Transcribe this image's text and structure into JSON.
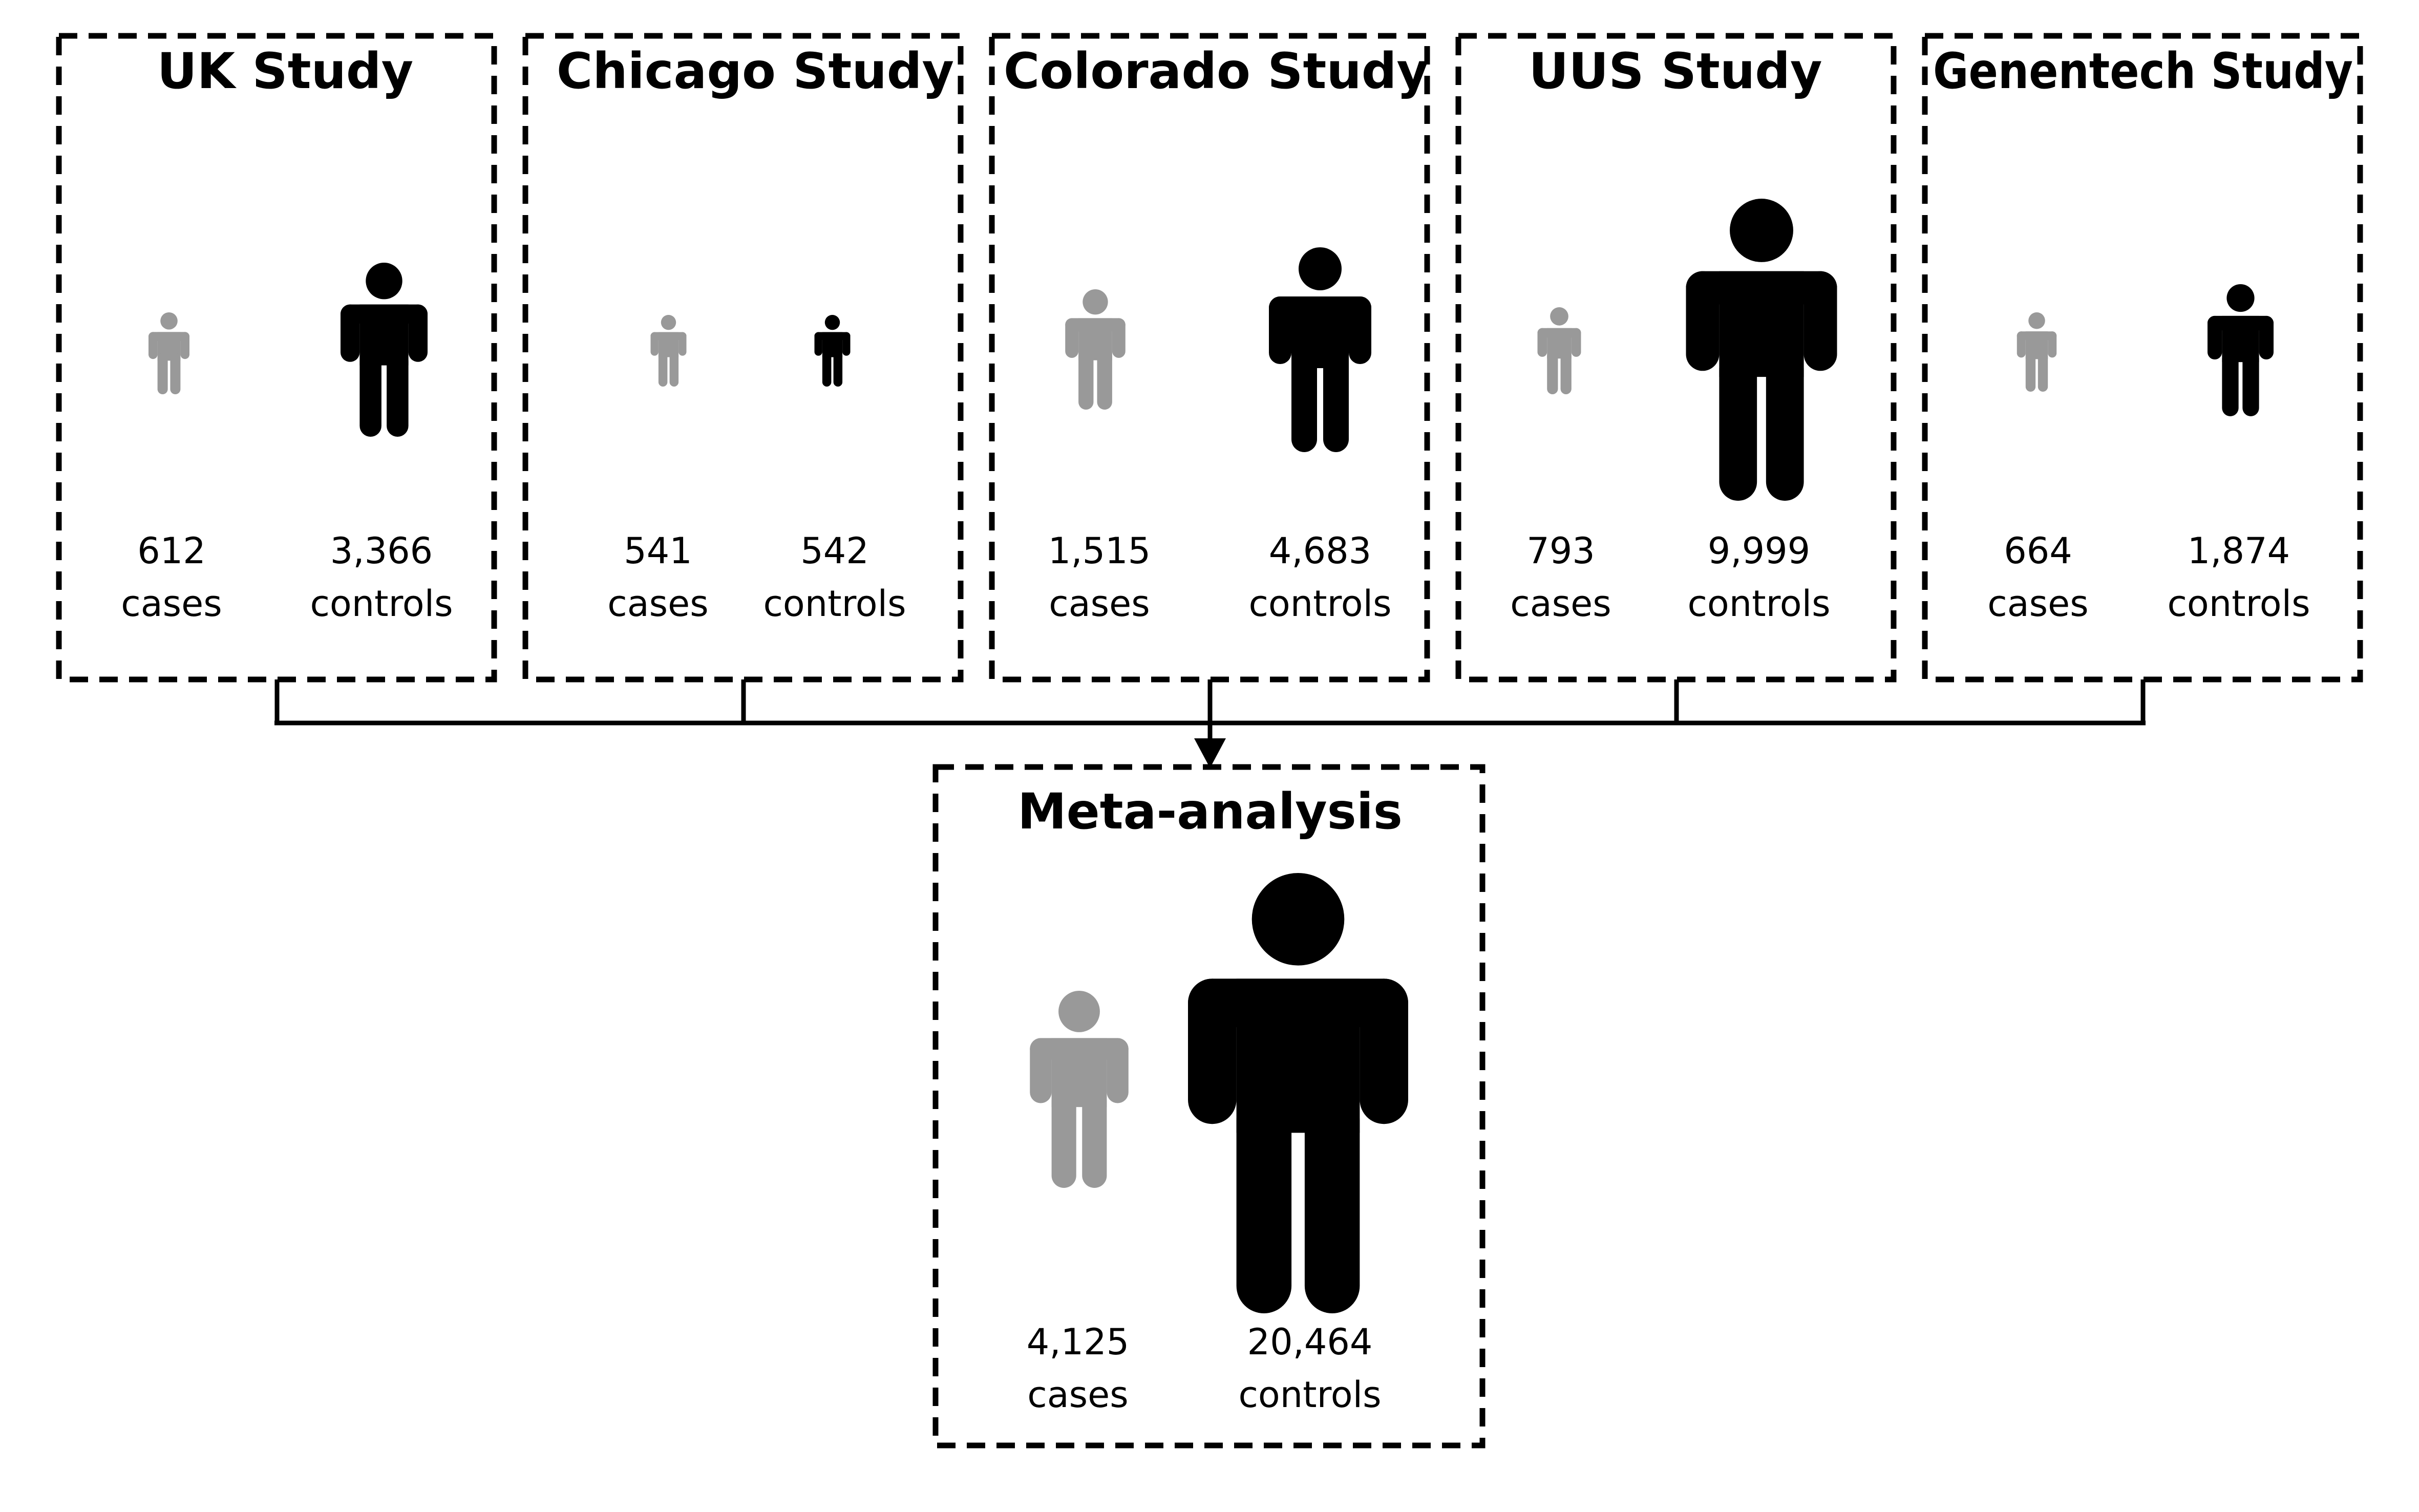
{
  "studies": [
    {
      "name": "UK Study",
      "cases_count": "612",
      "cases_label": "cases",
      "controls_count": "3,366",
      "controls_label": "controls"
    },
    {
      "name": "Chicago Study",
      "cases_count": "541",
      "cases_label": "cases",
      "controls_count": "542",
      "controls_label": "controls"
    },
    {
      "name": "Colorado Study",
      "cases_count": "1,515",
      "cases_label": "cases",
      "controls_count": "4,683",
      "controls_label": "controls"
    },
    {
      "name": "UUS Study",
      "cases_count": "793",
      "cases_label": "cases",
      "controls_count": "9,999",
      "controls_label": "controls"
    },
    {
      "name": "Genentech Study",
      "cases_count": "664",
      "cases_label": "cases",
      "controls_count": "1,874",
      "controls_label": "controls"
    }
  ],
  "meta": {
    "name": "Meta-analysis",
    "cases_count": "4,125",
    "cases_label": "cases",
    "controls_count": "20,464",
    "controls_label": "controls"
  },
  "colors": {
    "cases_figure": "#999999",
    "controls_figure": "#000000",
    "border": "#000000"
  },
  "icons": {
    "cases": "person-icon",
    "controls": "person-icon"
  }
}
